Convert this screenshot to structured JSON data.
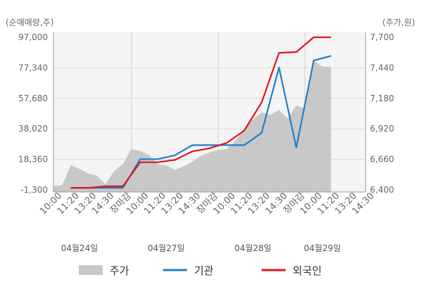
{
  "chart_data": {
    "type": "line",
    "left_axis_title": "(순매매량,주)",
    "right_axis_title": "(주가,원)",
    "left_ticks": [
      "97,000",
      "77,340",
      "57,680",
      "38,020",
      "18,360",
      "-1,300"
    ],
    "left_tick_values": [
      97000,
      77340,
      57680,
      38020,
      18360,
      -1300
    ],
    "right_ticks": [
      "7,700",
      "7,440",
      "7,180",
      "6,920",
      "6,660",
      "6,400"
    ],
    "right_tick_values": [
      7700,
      7440,
      7180,
      6920,
      6660,
      6400
    ],
    "x_labels": [
      "10:00",
      "11:20",
      "13:20",
      "14:30",
      "장마감",
      "10:00",
      "11:20",
      "13:20",
      "14:30",
      "장마감",
      "10:00",
      "11:20",
      "13:20",
      "14:30",
      "장마감",
      "10:00",
      "11:20",
      "13:20",
      "14:30"
    ],
    "x_label_red": [
      false,
      false,
      false,
      false,
      true,
      false,
      false,
      false,
      false,
      true,
      false,
      false,
      false,
      false,
      true,
      false,
      false,
      false,
      false
    ],
    "date_labels": [
      {
        "text": "04월24일",
        "at_index": 1.5
      },
      {
        "text": "04월27일",
        "at_index": 6.5
      },
      {
        "text": "04월28일",
        "at_index": 11.5
      },
      {
        "text": "04월29일",
        "at_index": 15.5
      }
    ],
    "day_separator_indices": [
      4.5,
      9.5,
      14.5
    ],
    "legend": [
      {
        "key": "price",
        "label": "주가",
        "color": "#c8c8c8"
      },
      {
        "key": "inst",
        "label": "기관",
        "color": "#1f7fc9"
      },
      {
        "key": "foreign",
        "label": "외국인",
        "color": "#e0141e"
      }
    ],
    "series": [
      {
        "name": "기관",
        "key": "inst",
        "axis": "left",
        "color": "#1f7fc9",
        "x": [
          1,
          2,
          3,
          4,
          5,
          6,
          7,
          8,
          9,
          10,
          11,
          12,
          13,
          14,
          15,
          16
        ],
        "values": [
          0,
          0,
          0,
          0,
          18500,
          18500,
          21000,
          27500,
          27500,
          27500,
          27500,
          35500,
          77500,
          26000,
          82000,
          85000
        ]
      },
      {
        "name": "외국인",
        "key": "foreign",
        "axis": "left",
        "color": "#e0141e",
        "x": [
          1,
          2,
          3,
          4,
          5,
          6,
          7,
          8,
          9,
          10,
          11,
          12,
          13,
          14,
          15,
          16
        ],
        "values": [
          0,
          0,
          1000,
          1000,
          16500,
          16500,
          18000,
          23500,
          25500,
          29000,
          37000,
          55000,
          87000,
          87500,
          97000,
          97000
        ]
      }
    ],
    "price_series": {
      "name": "주가",
      "axis": "right",
      "color": "#c8c8c8",
      "x": [
        0,
        0.5,
        1,
        1.5,
        2,
        2.5,
        3,
        3.5,
        4,
        4.5,
        5,
        5.5,
        6,
        6.5,
        7,
        7.5,
        8,
        8.5,
        9,
        9.5,
        10,
        10.5,
        11,
        11.5,
        12,
        12.5,
        13,
        13.5,
        14,
        14.5,
        15,
        15.5,
        16
      ],
      "values": [
        6430,
        6440,
        6610,
        6580,
        6540,
        6520,
        6450,
        6560,
        6620,
        6750,
        6730,
        6700,
        6620,
        6610,
        6570,
        6600,
        6640,
        6690,
        6720,
        6740,
        6750,
        6820,
        6920,
        7000,
        7060,
        7040,
        7080,
        7010,
        7120,
        7090,
        7500,
        7450,
        7450
      ]
    },
    "x_range": [
      0,
      18
    ],
    "grid": true
  }
}
